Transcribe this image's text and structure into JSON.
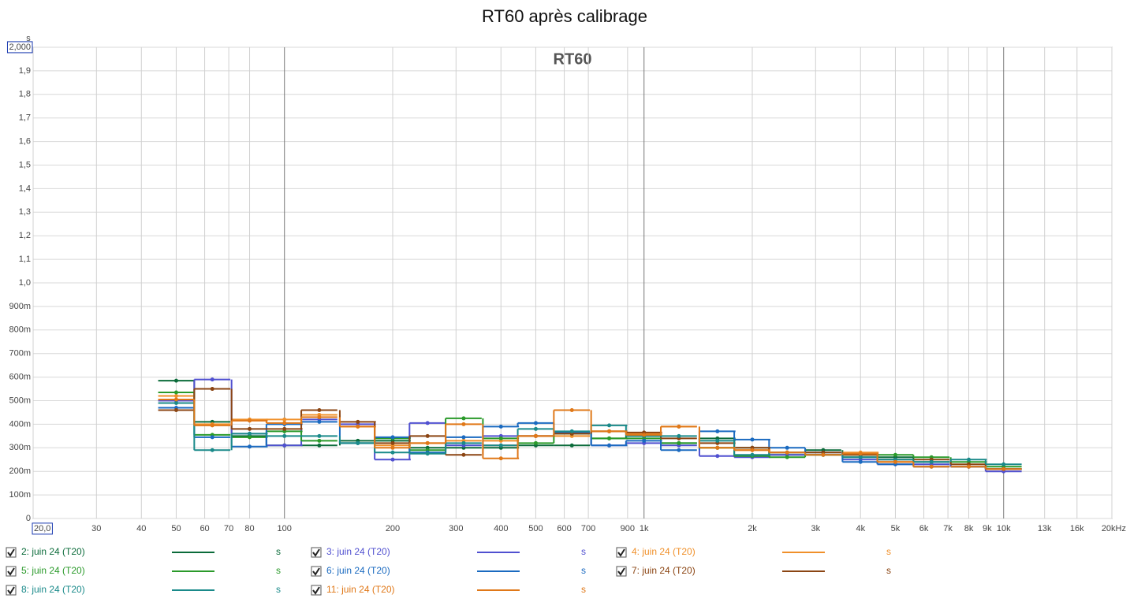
{
  "chart_data": {
    "type": "step",
    "title": "RT60 après calibrage",
    "annotation": "RT60",
    "y_unit": "s",
    "legend_unit": "s",
    "xscale": "log",
    "grid": true,
    "xlim": [
      20,
      20000
    ],
    "ylim": [
      0,
      2
    ],
    "xticks": [
      {
        "value": 20,
        "label": "20,0"
      },
      30,
      40,
      50,
      60,
      70,
      80,
      100,
      200,
      300,
      400,
      500,
      600,
      700,
      900,
      {
        "value": 1000,
        "label": "1k"
      },
      {
        "value": 2000,
        "label": "2k"
      },
      {
        "value": 3000,
        "label": "3k"
      },
      {
        "value": 4000,
        "label": "4k"
      },
      {
        "value": 5000,
        "label": "5k"
      },
      {
        "value": 6000,
        "label": "6k"
      },
      {
        "value": 7000,
        "label": "7k"
      },
      {
        "value": 8000,
        "label": "8k"
      },
      {
        "value": 9000,
        "label": "9k"
      },
      {
        "value": 10000,
        "label": "10k"
      },
      {
        "value": 13000,
        "label": "13k"
      },
      {
        "value": 16000,
        "label": "16k"
      },
      {
        "value": 20000,
        "label": "20kHz"
      }
    ],
    "yticks": [
      0,
      {
        "value": 0.1,
        "label": "100m"
      },
      {
        "value": 0.2,
        "label": "200m"
      },
      {
        "value": 0.3,
        "label": "300m"
      },
      {
        "value": 0.4,
        "label": "400m"
      },
      {
        "value": 0.5,
        "label": "500m"
      },
      {
        "value": 0.6,
        "label": "600m"
      },
      {
        "value": 0.7,
        "label": "700m"
      },
      {
        "value": 0.8,
        "label": "800m"
      },
      {
        "value": 0.9,
        "label": "900m"
      },
      {
        "value": 1.0,
        "label": "1,0"
      },
      {
        "value": 1.1,
        "label": "1,1"
      },
      {
        "value": 1.2,
        "label": "1,2"
      },
      {
        "value": 1.3,
        "label": "1,3"
      },
      {
        "value": 1.4,
        "label": "1,4"
      },
      {
        "value": 1.5,
        "label": "1,5"
      },
      {
        "value": 1.6,
        "label": "1,6"
      },
      {
        "value": 1.7,
        "label": "1,7"
      },
      {
        "value": 1.8,
        "label": "1,8"
      },
      {
        "value": 1.9,
        "label": "1,9"
      },
      {
        "value": 2.0,
        "label": "2,000"
      }
    ],
    "x": [
      50,
      63,
      80,
      100,
      125,
      160,
      200,
      250,
      315,
      400,
      500,
      630,
      800,
      1000,
      1250,
      1600,
      2000,
      2500,
      3150,
      4000,
      5000,
      6300,
      8000,
      10000
    ],
    "series": [
      {
        "name": "2: juin 24 (T20)",
        "color": "#0b6b3a",
        "values": [
          0.585,
          0.41,
          0.35,
          0.31,
          0.31,
          0.33,
          0.33,
          0.3,
          0.3,
          0.3,
          0.31,
          0.31,
          0.34,
          0.35,
          0.32,
          0.34,
          0.3,
          0.27,
          0.29,
          0.26,
          0.26,
          0.24,
          0.22,
          0.21
        ]
      },
      {
        "name": "3: juin 24 (T20)",
        "color": "#5050d0",
        "values": [
          0.5,
          0.59,
          0.36,
          0.31,
          0.42,
          0.4,
          0.25,
          0.405,
          0.31,
          0.35,
          0.35,
          0.36,
          0.31,
          0.32,
          0.31,
          0.265,
          0.26,
          0.27,
          0.27,
          0.25,
          0.23,
          0.23,
          0.22,
          0.2
        ]
      },
      {
        "name": "4: juin 24 (T20)",
        "color": "#f0902a",
        "values": [
          0.52,
          0.4,
          0.42,
          0.42,
          0.44,
          0.39,
          0.31,
          0.32,
          0.33,
          0.33,
          0.35,
          0.35,
          0.37,
          0.36,
          0.39,
          0.3,
          0.29,
          0.28,
          0.27,
          0.28,
          0.24,
          0.22,
          0.22,
          0.21
        ]
      },
      {
        "name": "5: juin 24 (T20)",
        "color": "#2a9a2a",
        "values": [
          0.535,
          0.355,
          0.345,
          0.37,
          0.33,
          0.32,
          0.34,
          0.29,
          0.425,
          0.34,
          0.32,
          0.36,
          0.34,
          0.34,
          0.32,
          0.3,
          0.265,
          0.26,
          0.27,
          0.27,
          0.27,
          0.26,
          0.24,
          0.22
        ]
      },
      {
        "name": "6: juin 24 (T20)",
        "color": "#1a6ac0",
        "values": [
          0.47,
          0.345,
          0.305,
          0.4,
          0.41,
          0.32,
          0.345,
          0.28,
          0.345,
          0.39,
          0.405,
          0.365,
          0.31,
          0.33,
          0.29,
          0.37,
          0.335,
          0.3,
          0.28,
          0.24,
          0.23,
          0.22,
          0.22,
          0.21
        ]
      },
      {
        "name": "7: juin 24 (T20)",
        "color": "#8b4513",
        "values": [
          0.46,
          0.55,
          0.38,
          0.38,
          0.46,
          0.41,
          0.32,
          0.35,
          0.27,
          0.31,
          0.35,
          0.36,
          0.37,
          0.365,
          0.34,
          0.32,
          0.3,
          0.28,
          0.28,
          0.27,
          0.25,
          0.25,
          0.23,
          0.21
        ]
      },
      {
        "name": "8: juin 24 (T20)",
        "color": "#1a8a8a",
        "values": [
          0.49,
          0.29,
          0.36,
          0.35,
          0.35,
          0.32,
          0.28,
          0.275,
          0.32,
          0.31,
          0.38,
          0.37,
          0.395,
          0.35,
          0.35,
          0.33,
          0.27,
          0.28,
          0.27,
          0.26,
          0.25,
          0.24,
          0.25,
          0.23
        ]
      },
      {
        "name": "11: juin 24 (T20)",
        "color": "#e07818",
        "values": [
          0.505,
          0.395,
          0.415,
          0.405,
          0.43,
          0.39,
          0.3,
          0.32,
          0.4,
          0.255,
          0.35,
          0.46,
          0.37,
          0.355,
          0.39,
          0.3,
          0.29,
          0.28,
          0.27,
          0.275,
          0.24,
          0.22,
          0.22,
          0.21
        ]
      }
    ]
  }
}
